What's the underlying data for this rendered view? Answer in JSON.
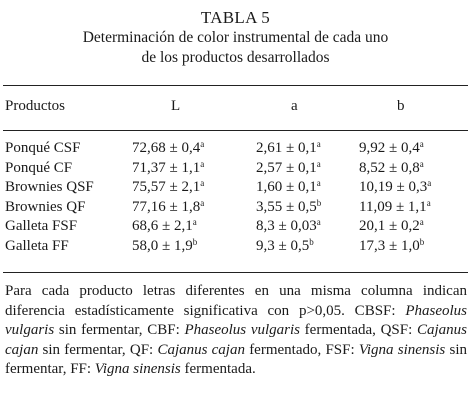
{
  "title": {
    "line1": "TABLA 5",
    "line2": "Determinación de color instrumental de cada uno",
    "line3": "de los productos desarrollados"
  },
  "table": {
    "headers": [
      "Productos",
      "L",
      "a",
      "b"
    ],
    "rows": [
      {
        "product": "Ponqué CSF",
        "L": "72,68 ± 0,4",
        "L_sup": "a",
        "a": "2,61 ± 0,1",
        "a_sup": "a",
        "b": "9,92 ± 0,4",
        "b_sup": "a"
      },
      {
        "product": "Ponqué CF",
        "L": "71,37 ± 1,1",
        "L_sup": "a",
        "a": "2,57 ± 0,1",
        "a_sup": "a",
        "b": "8,52 ± 0,8",
        "b_sup": "a"
      },
      {
        "product": "Brownies QSF",
        "L": "75,57 ± 2,1",
        "L_sup": "a",
        "a": "1,60 ± 0,1",
        "a_sup": "a",
        "b": "10,19 ± 0,3",
        "b_sup": "a"
      },
      {
        "product": "Brownies QF",
        "L": "77,16 ± 1,8",
        "L_sup": "a",
        "a": "3,55 ± 0,5",
        "a_sup": "b",
        "b": "11,09 ± 1,1",
        "b_sup": "a"
      },
      {
        "product": "Galleta FSF",
        "L": "68,6 ± 2,1",
        "L_sup": "a",
        "a": "8,3 ± 0,03",
        "a_sup": "a",
        "b": "20,1 ± 0,2",
        "b_sup": "a"
      },
      {
        "product": "Galleta FF",
        "L": "58,0 ± 1,9",
        "L_sup": "b",
        "a": "9,3 ± 0,5",
        "a_sup": "b",
        "b": "17,3 ± 1,0",
        "b_sup": "b"
      }
    ]
  },
  "note": {
    "p1": "Para cada producto letras diferentes en una misma columna indican diferencia estadísticamente significativa con p>0,05. CBSF: ",
    "s1": "Phaseolus vulgaris",
    "p2": " sin fermentar, CBF: ",
    "s2": "Phaseolus vulgaris",
    "p3": " fermentada, QSF: ",
    "s3": "Cajanus cajan",
    "p4": " sin fermentar, QF: ",
    "s4": "Cajanus cajan",
    "p5": " fermentado, FSF: ",
    "s5": "Vigna sinensis",
    "p6": " sin fermentar, FF: ",
    "s6": "Vigna sinensis",
    "p7": " fermentada."
  }
}
